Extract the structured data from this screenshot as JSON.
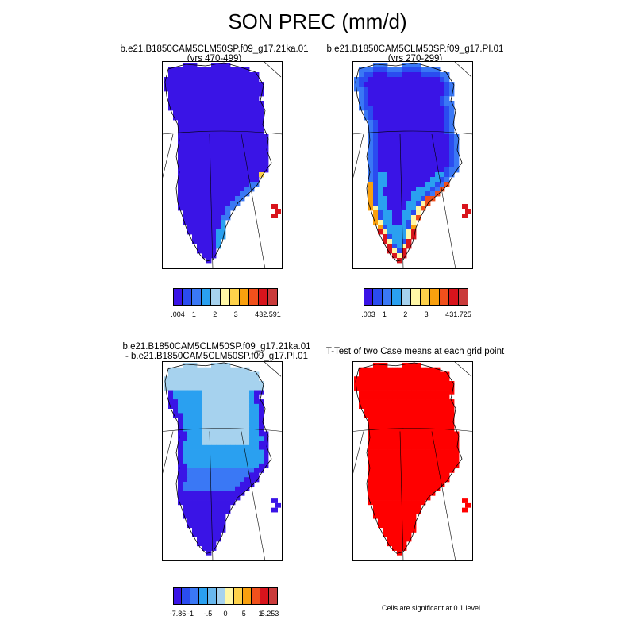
{
  "figure": {
    "title": "SON PREC (mm/d)"
  },
  "panels": [
    {
      "id": "top-left",
      "title_lines": [
        "b.e21.B1850CAM5CLM50SP.f09_g17.21ka.01",
        "(yrs 470-499)"
      ],
      "fill": "two-state",
      "colorbar": {
        "colors": [
          "#3a14e6",
          "#2a4cf0",
          "#3a78f5",
          "#2aa0f0",
          "#a6d2ee",
          "#fff7a6",
          "#fed24a",
          "#f9a00e",
          "#f0501c",
          "#d8141c",
          "#ca3b3b"
        ],
        "labels": [
          ".004",
          "1",
          "2",
          "3",
          "4",
          "32.591"
        ]
      }
    },
    {
      "id": "top-right",
      "title_lines": [
        "b.e21.B1850CAM5CLM50SP.f09_g17.PI.01",
        "(yrs 270-299)"
      ],
      "fill": "interior-gradient",
      "colorbar": {
        "colors": [
          "#3a14e6",
          "#2a4cf0",
          "#3a78f5",
          "#2aa0f0",
          "#a6d2ee",
          "#fff7a6",
          "#fed24a",
          "#f9a00e",
          "#f0501c",
          "#d8141c",
          "#ca3b3b"
        ],
        "labels": [
          ".003",
          "1",
          "2",
          "3",
          "4",
          "31.725"
        ]
      }
    },
    {
      "id": "bottom-left",
      "title_lines": [
        "b.e21.B1850CAM5CLM50SP.f09_g17.21ka.01",
        "- b.e21.B1850CAM5CLM50SP.f09_g17.PI.01"
      ],
      "fill": "difference",
      "colorbar": {
        "colors": [
          "#3a14e6",
          "#2a4cf0",
          "#3a78f5",
          "#2aa0f0",
          "#68b8ee",
          "#a6d2ee",
          "#fff7a6",
          "#fed24a",
          "#f9a00e",
          "#f0501c",
          "#d8141c",
          "#ca3b3b"
        ],
        "labels": [
          "-7.86",
          "-1",
          "-.5",
          "0",
          ".5",
          "1",
          "5.253"
        ]
      }
    },
    {
      "id": "bottom-right",
      "title_lines": [
        "T-Test of two Case means at each grid point"
      ],
      "fill": "significance",
      "note": "Cells are significant at 0.1 level"
    }
  ]
}
